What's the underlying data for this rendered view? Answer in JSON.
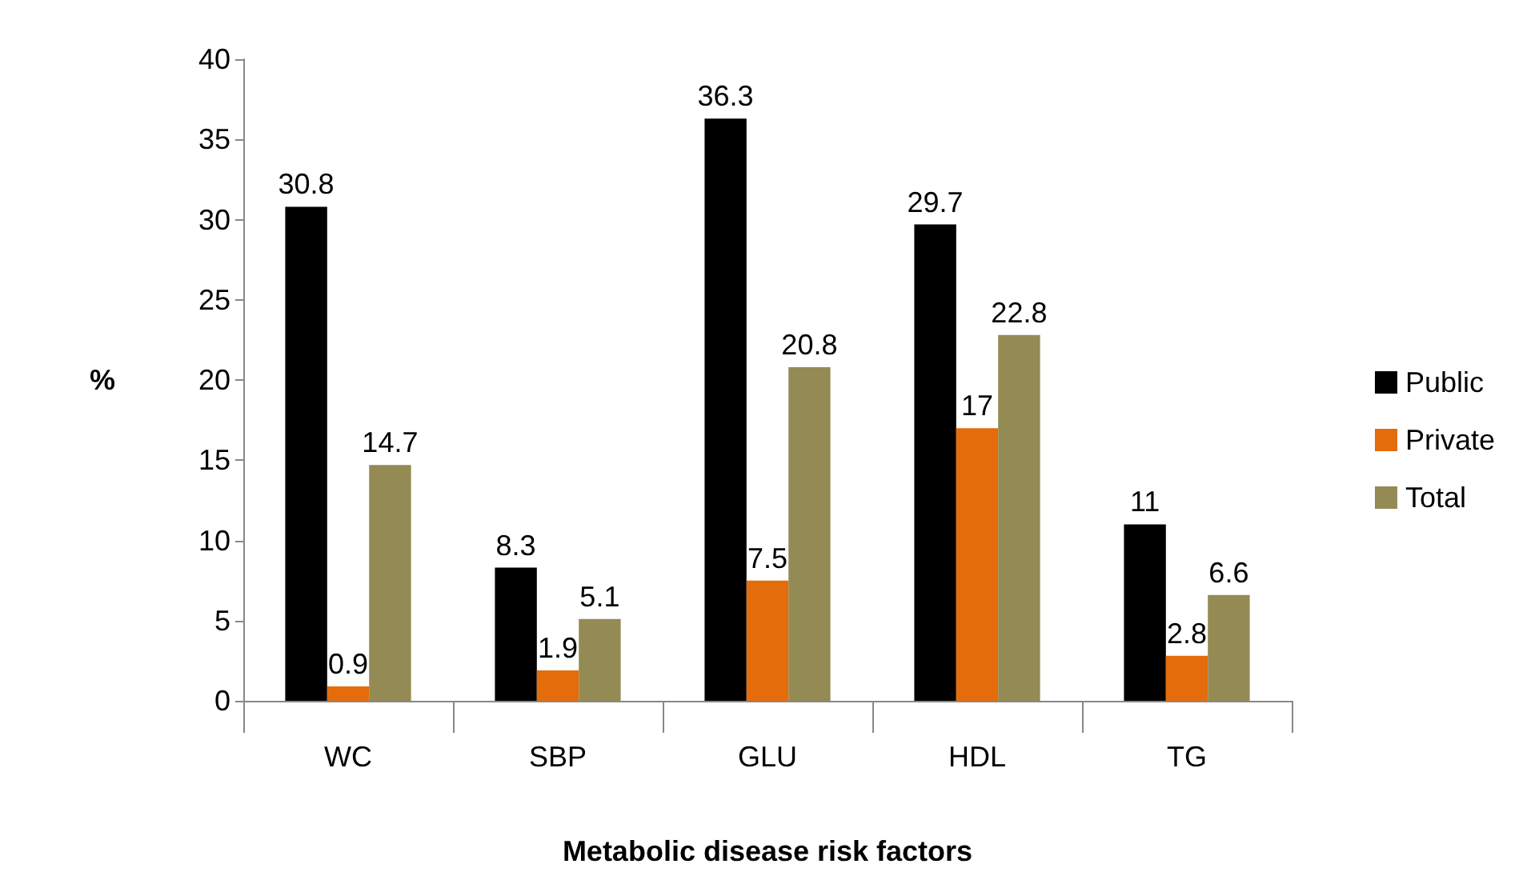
{
  "chart_data": {
    "type": "bar",
    "xlabel": "Metabolic disease risk factors",
    "ylabel": "%",
    "categories": [
      "WC",
      "SBP",
      "GLU",
      "HDL",
      "TG"
    ],
    "series": [
      {
        "name": "Public",
        "color": "#000000",
        "values": [
          30.8,
          8.3,
          36.3,
          29.7,
          11
        ]
      },
      {
        "name": "Private",
        "color": "#e46c0a",
        "values": [
          0.9,
          1.9,
          7.5,
          17,
          2.8
        ]
      },
      {
        "name": "Total",
        "color": "#948a54",
        "values": [
          14.7,
          5.1,
          20.8,
          22.8,
          6.6
        ]
      }
    ],
    "ylim": [
      0,
      40
    ],
    "yticks": [
      0,
      5,
      10,
      15,
      20,
      25,
      30,
      35,
      40
    ],
    "data_labels": true,
    "grid": false,
    "legend": "right"
  }
}
